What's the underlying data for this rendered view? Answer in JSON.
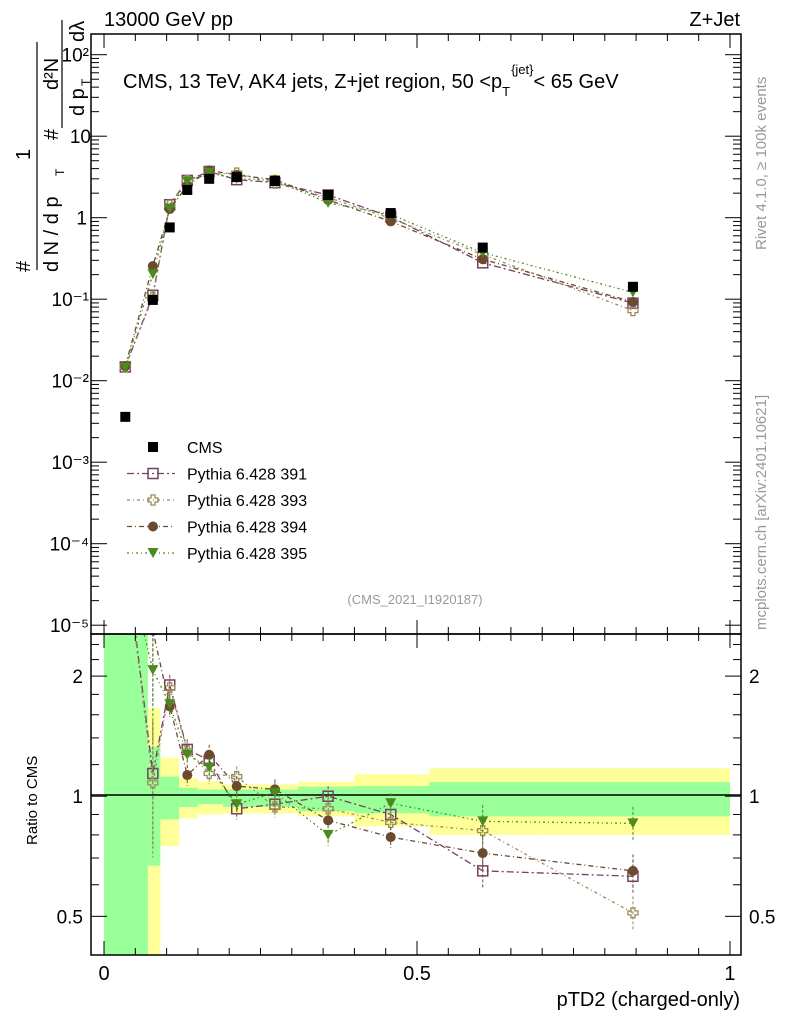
{
  "header": {
    "left": "13000 GeV pp",
    "right": "Z+Jet"
  },
  "side_text": {
    "rivet": "Rivet 4.1.0, ≥ 100k events",
    "mcplots": "mcplots.cern.ch [arXiv:2401.10621]"
  },
  "analysis_id": "(CMS_2021_I1920187)",
  "colors": {
    "cms": "#000000",
    "p391": "#74425e",
    "p393": "#9a8a5c",
    "p394": "#6b4a2e",
    "p395": "#4b8a1c",
    "band_inner": "#99ff99",
    "band_outer": "#ffff99"
  },
  "chart_data": {
    "type": "scatter",
    "title": {
      "main": "CMS, 13 TeV, AK4 jets, Z+jet region, 50 <p",
      "sub": "T",
      "sup": "{jet}",
      "tail": "< 65 GeV"
    },
    "ylabel": {
      "num": "d²N",
      "den1": "d p",
      "den2": "dλ",
      "pre_num": "1",
      "pre_den": "d N / d p",
      "hash": "#",
      "sub": "T"
    },
    "xlabel": "pTD2 (charged-only)",
    "ratio_ylabel": "Ratio to CMS",
    "xlim": [
      -0.0208,
      1.0176
    ],
    "ylim_log10": [
      -5.108,
      2.254
    ],
    "ratio_ylim": [
      0.4,
      2.55
    ],
    "x_ticks": [
      "0",
      "0.5",
      "1"
    ],
    "x_tick_values": [
      0,
      0.5,
      1
    ],
    "y_ticks": [
      "10⁻⁵",
      "10⁻⁴",
      "10⁻³",
      "10⁻²",
      "10⁻¹",
      "1",
      "10",
      "10²"
    ],
    "y_tick_values": [
      -5,
      -4,
      -3,
      -2,
      -1,
      0,
      1,
      2
    ],
    "ratio_ticks": [
      "0.5",
      "1",
      "2"
    ],
    "ratio_tick_values": [
      0.5,
      1,
      2
    ],
    "x": [
      0.034,
      0.078,
      0.105,
      0.133,
      0.168,
      0.212,
      0.273,
      0.358,
      0.458,
      0.605,
      0.845
    ],
    "cms": [
      0.0036,
      0.098,
      0.76,
      2.19,
      3.0,
      3.15,
      2.82,
      1.9,
      1.14,
      0.43,
      0.142
    ],
    "legend": [
      "CMS",
      "Pythia 6.428 391",
      "Pythia 6.428 393",
      "Pythia 6.428 394",
      "Pythia 6.428 395"
    ],
    "series": [
      {
        "name": "Pythia 6.428 391",
        "marker": "open-square",
        "ratio": [
          4.1,
          1.14,
          1.9,
          1.31,
          1.23,
          0.93,
          0.955,
          1.0,
          0.9,
          0.65,
          0.63
        ]
      },
      {
        "name": "Pythia 6.428 393",
        "marker": "open-cross",
        "ratio": [
          4.1,
          1.08,
          1.87,
          1.3,
          1.14,
          1.12,
          0.94,
          0.93,
          0.86,
          0.82,
          0.51
        ]
      },
      {
        "name": "Pythia 6.428 394",
        "marker": "filled-circle",
        "ratio": [
          4.2,
          2.6,
          1.68,
          1.13,
          1.27,
          1.06,
          1.04,
          0.87,
          0.79,
          0.72,
          0.65
        ]
      },
      {
        "name": "Pythia 6.428 395",
        "marker": "filled-triangle-down",
        "ratio": [
          4.0,
          2.07,
          1.7,
          1.27,
          1.18,
          0.955,
          1.02,
          0.8,
          0.96,
          0.865,
          0.855
        ]
      }
    ],
    "bands": {
      "edges": [
        0,
        0.07,
        0.09,
        0.12,
        0.15,
        0.19,
        0.24,
        0.31,
        0.4,
        0.52,
        0.7,
        1.0
      ],
      "outer": [
        [
          0.3,
          3
        ],
        [
          0.3,
          1.66
        ],
        [
          0.75,
          1.25
        ],
        [
          0.88,
          1.11
        ],
        [
          0.9,
          1.09
        ],
        [
          0.905,
          1.07
        ],
        [
          0.905,
          1.07
        ],
        [
          0.89,
          1.087
        ],
        [
          0.84,
          1.135
        ],
        [
          0.8,
          1.175
        ],
        [
          0.8,
          1.175
        ]
      ],
      "inner": [
        [
          0.3,
          3
        ],
        [
          0.67,
          1.33
        ],
        [
          0.875,
          1.12
        ],
        [
          0.94,
          1.05
        ],
        [
          0.955,
          1.04
        ],
        [
          0.94,
          1.04
        ],
        [
          0.94,
          1.04
        ],
        [
          0.917,
          1.056
        ],
        [
          0.906,
          1.06
        ],
        [
          0.89,
          1.085
        ],
        [
          0.89,
          1.085
        ]
      ]
    }
  }
}
